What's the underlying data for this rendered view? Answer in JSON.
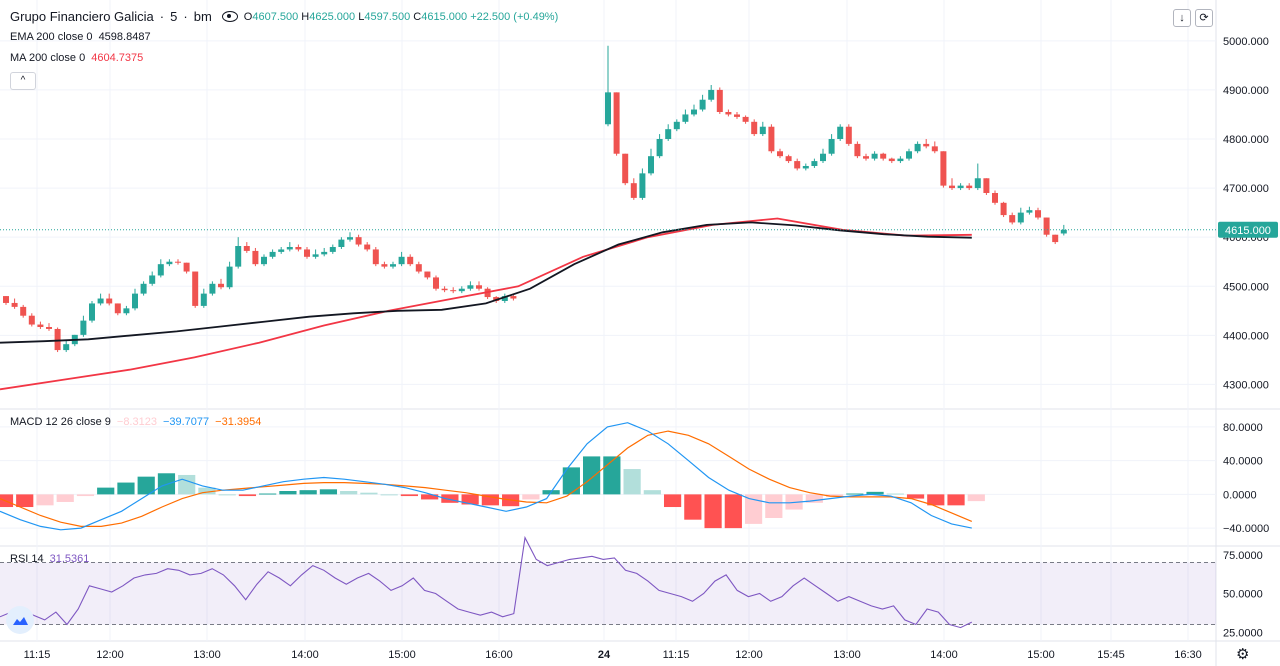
{
  "header": {
    "symbol": "Grupo Financiero Galicia",
    "interval": "5",
    "exchange": "bm",
    "ohlc": {
      "open_label": "O",
      "open": "4607.500",
      "high_label": "H",
      "high": "4625.000",
      "low_label": "L",
      "low": "4597.500",
      "close_label": "C",
      "close": "4615.000",
      "change": "+22.500 (+0.49%)"
    }
  },
  "indicators": {
    "ema": {
      "label": "EMA 200 close 0",
      "value": "4598.8487"
    },
    "ma": {
      "label": "MA 200 close 0",
      "value": "4604.7375"
    },
    "macd": {
      "label": "MACD 12 26 close 9",
      "hist": "−8.3123",
      "macd": "−39.7077",
      "signal": "−31.3954"
    },
    "rsi": {
      "label": "RSI 14",
      "value": "31.5361"
    }
  },
  "buttons": {
    "collapse": "^",
    "download": "↓",
    "refresh": "⟳"
  },
  "price_tag": "4615.000",
  "colors": {
    "up": "#26a69a",
    "down": "#ef5350",
    "ema": "#131722",
    "ma": "#f23645",
    "macd_line": "#2196f3",
    "signal_line": "#ff6d00",
    "rsi": "#7e57c2"
  },
  "chart_data": [
    {
      "type": "candlestick",
      "title": "Grupo Financiero Galicia, 5, bm",
      "y_ticks": [
        "5000.000",
        "4900.000",
        "4800.000",
        "4700.000",
        "4600.000",
        "4500.000",
        "4400.000",
        "4300.000"
      ],
      "x_ticks": [
        "11:15",
        "12:00",
        "13:00",
        "14:00",
        "15:00",
        "16:00",
        "24",
        "11:15",
        "12:00",
        "13:00",
        "14:00",
        "15:00",
        "15:45",
        "16:30"
      ],
      "ylim": [
        4252,
        5075
      ],
      "grid": true,
      "candles_day1": [
        [
          4480,
          4480,
          4466
        ],
        [
          4466,
          4475,
          4458
        ],
        [
          4458,
          4462,
          4440
        ],
        [
          4440,
          4445,
          4422
        ],
        [
          4422,
          4428,
          4417
        ],
        [
          4417,
          4425,
          4413
        ],
        [
          4413,
          4416,
          4370
        ],
        [
          4370,
          4389,
          4382
        ],
        [
          4382,
          4395,
          4401
        ],
        [
          4401,
          4440,
          4430
        ],
        [
          4430,
          4470,
          4465
        ],
        [
          4465,
          4485,
          4475
        ],
        [
          4475,
          4485,
          4465
        ],
        [
          4465,
          4465,
          4445
        ],
        [
          4445,
          4460,
          4455
        ],
        [
          4455,
          4495,
          4485
        ],
        [
          4485,
          4510,
          4505
        ],
        [
          4505,
          4530,
          4522
        ],
        [
          4522,
          4555,
          4545
        ],
        [
          4545,
          4555,
          4550
        ],
        [
          4550,
          4555,
          4548
        ],
        [
          4548,
          4548,
          4530
        ],
        [
          4530,
          4530,
          4460
        ],
        [
          4460,
          4495,
          4485
        ],
        [
          4485,
          4510,
          4505
        ],
        [
          4505,
          4515,
          4498
        ],
        [
          4498,
          4550,
          4540
        ],
        [
          4540,
          4600,
          4582
        ],
        [
          4582,
          4590,
          4572
        ],
        [
          4572,
          4578,
          4545
        ],
        [
          4545,
          4565,
          4560
        ],
        [
          4560,
          4575,
          4570
        ],
        [
          4570,
          4580,
          4575
        ],
        [
          4575,
          4590,
          4580
        ],
        [
          4580,
          4585,
          4575
        ],
        [
          4575,
          4580,
          4560
        ],
        [
          4560,
          4575,
          4565
        ],
        [
          4565,
          4578,
          4570
        ],
        [
          4570,
          4585,
          4580
        ],
        [
          4580,
          4600,
          4595
        ],
        [
          4595,
          4610,
          4600
        ],
        [
          4600,
          4605,
          4585
        ],
        [
          4585,
          4590,
          4575
        ],
        [
          4575,
          4580,
          4545
        ],
        [
          4545,
          4550,
          4540
        ],
        [
          4540,
          4550,
          4545
        ],
        [
          4545,
          4570,
          4560
        ],
        [
          4560,
          4565,
          4545
        ],
        [
          4545,
          4550,
          4530
        ],
        [
          4530,
          4530,
          4518
        ],
        [
          4518,
          4522,
          4495
        ],
        [
          4495,
          4500,
          4492
        ],
        [
          4492,
          4498,
          4490
        ],
        [
          4490,
          4500,
          4495
        ],
        [
          4495,
          4510,
          4502
        ],
        [
          4502,
          4510,
          4495
        ],
        [
          4495,
          4498,
          4478
        ],
        [
          4478,
          4480,
          4470
        ],
        [
          4470,
          4485,
          4480
        ],
        [
          4480,
          4482,
          4475
        ]
      ],
      "candles_day2": [
        [
          4830,
          4990,
          4895
        ],
        [
          4895,
          4895,
          4770
        ],
        [
          4770,
          4770,
          4710
        ],
        [
          4710,
          4720,
          4680
        ],
        [
          4680,
          4740,
          4730
        ],
        [
          4730,
          4780,
          4765
        ],
        [
          4765,
          4810,
          4800
        ],
        [
          4800,
          4830,
          4820
        ],
        [
          4820,
          4840,
          4835
        ],
        [
          4835,
          4860,
          4850
        ],
        [
          4850,
          4870,
          4860
        ],
        [
          4860,
          4890,
          4880
        ],
        [
          4880,
          4910,
          4900
        ],
        [
          4900,
          4905,
          4855
        ],
        [
          4855,
          4860,
          4850
        ],
        [
          4850,
          4855,
          4845
        ],
        [
          4845,
          4848,
          4835
        ],
        [
          4835,
          4840,
          4810
        ],
        [
          4810,
          4835,
          4825
        ],
        [
          4825,
          4830,
          4775
        ],
        [
          4775,
          4780,
          4765
        ],
        [
          4765,
          4768,
          4755
        ],
        [
          4755,
          4760,
          4740
        ],
        [
          4740,
          4750,
          4745
        ],
        [
          4745,
          4760,
          4755
        ],
        [
          4755,
          4780,
          4770
        ],
        [
          4770,
          4810,
          4800
        ],
        [
          4800,
          4830,
          4825
        ],
        [
          4825,
          4830,
          4790
        ],
        [
          4790,
          4795,
          4765
        ],
        [
          4765,
          4770,
          4760
        ],
        [
          4760,
          4775,
          4770
        ],
        [
          4770,
          4772,
          4760
        ],
        [
          4760,
          4762,
          4755
        ],
        [
          4755,
          4765,
          4760
        ],
        [
          4760,
          4780,
          4775
        ],
        [
          4775,
          4795,
          4790
        ],
        [
          4790,
          4800,
          4785
        ],
        [
          4785,
          4795,
          4775
        ],
        [
          4775,
          4775,
          4705
        ],
        [
          4705,
          4720,
          4700
        ],
        [
          4700,
          4710,
          4705
        ],
        [
          4705,
          4710,
          4700
        ],
        [
          4700,
          4750,
          4720
        ],
        [
          4720,
          4720,
          4690
        ],
        [
          4690,
          4695,
          4670
        ],
        [
          4670,
          4672,
          4645
        ],
        [
          4645,
          4650,
          4630
        ],
        [
          4630,
          4660,
          4650
        ],
        [
          4650,
          4662,
          4655
        ],
        [
          4655,
          4660,
          4640
        ],
        [
          4640,
          4640,
          4605
        ],
        [
          4605,
          4605,
          4590
        ],
        [
          4607.5,
          4625,
          4615
        ]
      ],
      "ema_200": [
        4385,
        4388,
        4392,
        4400,
        4408,
        4418,
        4428,
        4438,
        4445,
        4450,
        4452,
        4465,
        4495,
        4545,
        4585,
        4610,
        4625,
        4630,
        4624,
        4614,
        4606,
        4601,
        4599
      ],
      "ma_200": [
        4290,
        4310,
        4330,
        4355,
        4385,
        4420,
        4450,
        4475,
        4500,
        4560,
        4600,
        4625,
        4638,
        4615,
        4603,
        4604.7375
      ],
      "day_break_index": 60,
      "total_bars": 114
    },
    {
      "type": "line",
      "title": "MACD 12 26 close 9",
      "y_ticks": [
        "80.0000",
        "40.0000",
        "0.0000",
        "−40.0000"
      ],
      "ylim": [
        -60,
        100
      ],
      "macd_line": [
        -20,
        -30,
        -38,
        -42,
        -40,
        -30,
        -20,
        -5,
        10,
        18,
        10,
        5,
        5,
        10,
        15,
        18,
        20,
        18,
        15,
        12,
        8,
        2,
        -5,
        -10,
        -15,
        -20,
        -15,
        -5,
        30,
        60,
        80,
        85,
        75,
        60,
        40,
        20,
        5,
        -5,
        -10,
        -10,
        -8,
        -5,
        -2,
        0,
        -2,
        -10,
        -25,
        -35,
        -40
      ],
      "signal_line": [
        -5,
        -15,
        -25,
        -33,
        -38,
        -38,
        -34,
        -26,
        -15,
        -5,
        2,
        5,
        7,
        9,
        11,
        13,
        14,
        14,
        13,
        12,
        10,
        8,
        5,
        2,
        -2,
        -6,
        -9,
        -10,
        -2,
        15,
        35,
        55,
        70,
        75,
        70,
        60,
        45,
        30,
        18,
        8,
        2,
        -2,
        -3,
        -3,
        -3,
        -5,
        -12,
        -22,
        -32
      ],
      "histogram": [
        -15,
        -15,
        -13,
        -9,
        -2,
        8,
        14,
        21,
        25,
        23,
        8,
        0,
        -2,
        1,
        4,
        5,
        6,
        4,
        2,
        0,
        -2,
        -6,
        -10,
        -12,
        -13,
        -14,
        -6,
        5,
        32,
        45,
        45,
        30,
        5,
        -15,
        -30,
        -40,
        -40,
        -35,
        -28,
        -18,
        -10,
        -3,
        1,
        3,
        1,
        -5,
        -13,
        -13,
        -8
      ]
    },
    {
      "type": "line",
      "title": "RSI 14",
      "y_ticks": [
        "75.0000",
        "50.0000",
        "25.0000"
      ],
      "ylim": [
        20,
        80
      ],
      "band": [
        30,
        70
      ],
      "values": [
        35,
        38,
        40,
        36,
        33,
        38,
        30,
        40,
        55,
        53,
        51,
        55,
        60,
        62,
        63,
        66,
        65,
        62,
        63,
        66,
        62,
        55,
        46,
        56,
        64,
        60,
        55,
        62,
        68,
        65,
        60,
        56,
        60,
        63,
        58,
        52,
        55,
        60,
        52,
        50,
        45,
        40,
        38,
        36,
        38,
        35,
        37,
        86,
        72,
        68,
        70,
        72,
        73,
        74,
        72,
        73,
        65,
        63,
        58,
        52,
        50,
        48,
        45,
        50,
        58,
        62,
        52,
        48,
        50,
        45,
        48,
        55,
        60,
        55,
        50,
        45,
        48,
        45,
        42,
        40,
        42,
        33,
        30,
        40,
        38,
        30,
        28,
        31.5361
      ]
    }
  ]
}
